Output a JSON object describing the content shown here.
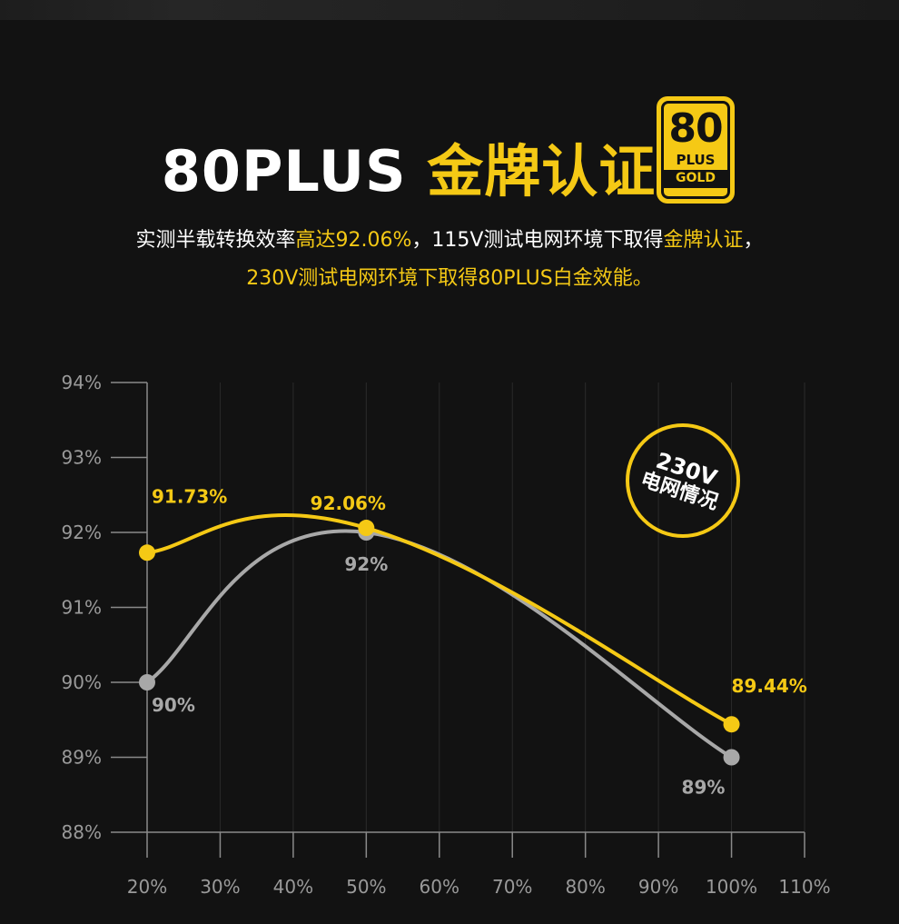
{
  "header": {
    "title_white": "80PLUS",
    "title_gold": "金牌认证"
  },
  "badge": {
    "number": "80",
    "plus": "PLUS",
    "tier": "GOLD"
  },
  "description": {
    "line1_a": "实测半载转换效率",
    "line1_b": "高达92.06%",
    "line1_c": "，115V测试电网环境下取得",
    "line1_d": "金牌认证",
    "line1_e": "，",
    "line2": "230V测试电网环境下取得80PLUS白金效能。"
  },
  "stamp": {
    "line1": "230V",
    "line2": "电网情况"
  },
  "colors": {
    "accent": "#f5c915",
    "secondary_series": "#a8a8a8",
    "background": "#121212"
  },
  "chart_data": {
    "type": "line",
    "x_ticks": [
      "20%",
      "30%",
      "40%",
      "50%",
      "60%",
      "70%",
      "80%",
      "90%",
      "100%",
      "110%"
    ],
    "y_ticks": [
      "88%",
      "89%",
      "90%",
      "91%",
      "92%",
      "93%",
      "94%"
    ],
    "xlim": [
      20,
      110
    ],
    "ylim": [
      88,
      94
    ],
    "grid": "vertical",
    "series": [
      {
        "color": "#f5c915",
        "x": [
          20,
          50,
          100
        ],
        "y": [
          91.73,
          92.06,
          89.44
        ],
        "labels": [
          "91.73%",
          "92.06%",
          "89.44%"
        ]
      },
      {
        "color": "#a8a8a8",
        "x": [
          20,
          50,
          100
        ],
        "y": [
          90,
          92,
          89
        ],
        "labels": [
          "90%",
          "92%",
          "89%"
        ]
      }
    ]
  }
}
